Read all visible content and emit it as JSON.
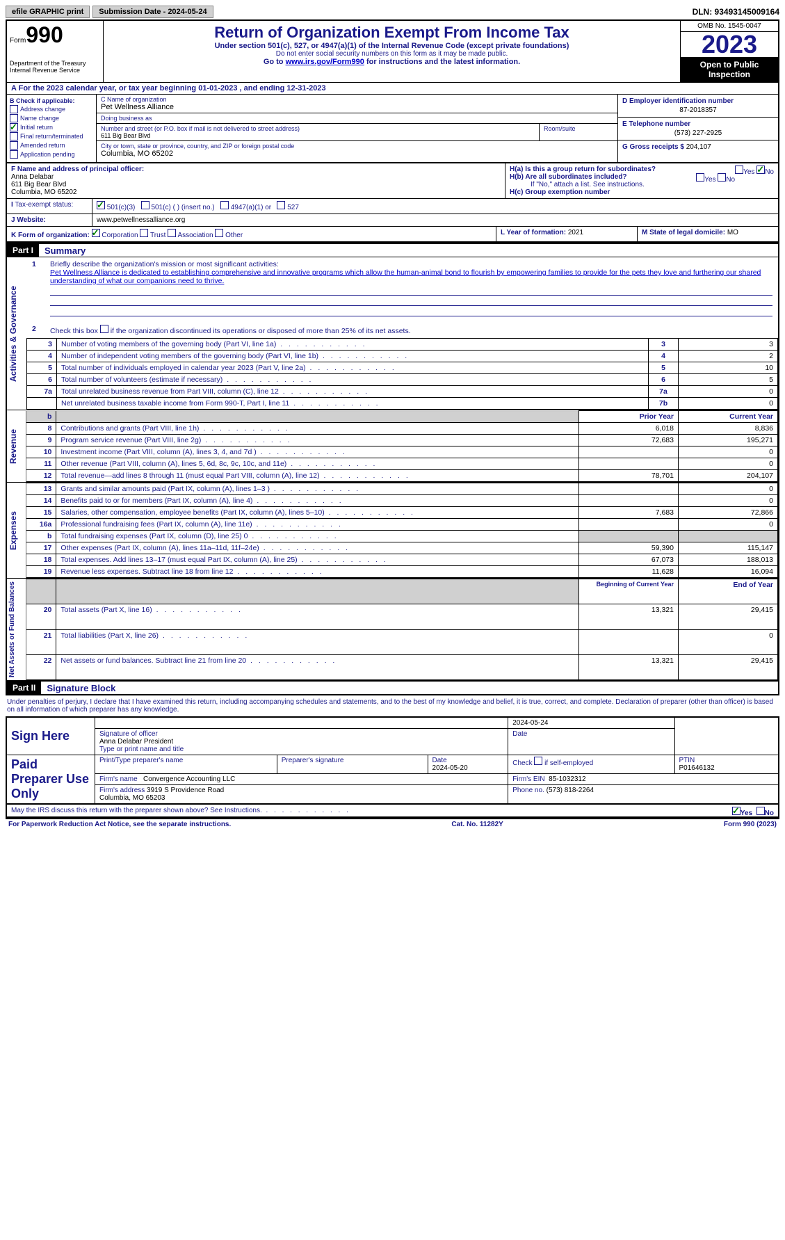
{
  "colors": {
    "primary_text": "#1a1a8a",
    "link": "#0000cc",
    "check": "#008000",
    "header_bg": "#000000",
    "grey_bg": "#d0d0d0"
  },
  "top": {
    "efile": "efile GRAPHIC print",
    "submission": "Submission Date - 2024-05-24",
    "dln": "DLN: 93493145009164"
  },
  "header": {
    "form_word": "Form",
    "form_num": "990",
    "title": "Return of Organization Exempt From Income Tax",
    "sub1": "Under section 501(c), 527, or 4947(a)(1) of the Internal Revenue Code (except private foundations)",
    "sub2": "Do not enter social security numbers on this form as it may be made public.",
    "sub3_pre": "Go to ",
    "sub3_link": "www.irs.gov/Form990",
    "sub3_post": " for instructions and the latest information.",
    "dept": "Department of the Treasury\nInternal Revenue Service",
    "omb": "OMB No. 1545-0047",
    "year": "2023",
    "open": "Open to Public Inspection"
  },
  "cal_year": "For the 2023 calendar year, or tax year beginning 01-01-2023   , and ending 12-31-2023",
  "box_b": {
    "hdr": "B Check if applicable:",
    "items": [
      "Address change",
      "Name change",
      "Initial return",
      "Final return/terminated",
      "Amended return",
      "Application pending"
    ],
    "checked_idx": 2
  },
  "box_c": {
    "name_lbl": "C Name of organization",
    "name": "Pet Wellness Alliance",
    "dba_lbl": "Doing business as",
    "dba": "",
    "addr_lbl": "Number and street (or P.O. box if mail is not delivered to street address)",
    "addr": "611 Big Bear Blvd",
    "room_lbl": "Room/suite",
    "city_lbl": "City or town, state or province, country, and ZIP or foreign postal code",
    "city": "Columbia, MO  65202"
  },
  "box_d": {
    "ein_lbl": "D Employer identification number",
    "ein": "87-2018357",
    "tel_lbl": "E Telephone number",
    "tel": "(573) 227-2925",
    "gross_lbl": "G Gross receipts $",
    "gross": "204,107"
  },
  "box_f": {
    "lbl": "F  Name and address of principal officer:",
    "name": "Anna Delabar",
    "addr1": "611 Big Bear Blvd",
    "addr2": "Columbia, MO  65202"
  },
  "box_h": {
    "a": "H(a)  Is this a group return for subordinates?",
    "b": "H(b)  Are all subordinates included?",
    "b_note": "If \"No,\" attach a list. See instructions.",
    "c": "H(c)  Group exemption number",
    "yes": "Yes",
    "no": "No"
  },
  "box_i": {
    "lbl": "Tax-exempt status:",
    "opts": [
      "501(c)(3)",
      "501(c) (  ) (insert no.)",
      "4947(a)(1) or",
      "527"
    ]
  },
  "box_j": {
    "lbl": "Website:",
    "val": "www.petwellnessalliance.org"
  },
  "box_k": {
    "lbl": "K Form of organization:",
    "opts": [
      "Corporation",
      "Trust",
      "Association",
      "Other"
    ]
  },
  "box_l": {
    "lbl": "L Year of formation:",
    "val": "2021"
  },
  "box_m": {
    "lbl": "M State of legal domicile:",
    "val": "MO"
  },
  "part1": {
    "hdr": "Part I",
    "title": "Summary",
    "mission_lbl": "Briefly describe the organization's mission or most significant activities:",
    "mission": "Pet Wellness Alliance is dedicated to establishing comprehensive and innovative programs which allow the human-animal bond to flourish by empowering families to provide for the pets they love and furthering our shared understanding of what our companions need to thrive.",
    "line2": "Check this box      if the organization discontinued its operations or disposed of more than 25% of its net assets.",
    "sections": {
      "gov": "Activities & Governance",
      "rev": "Revenue",
      "exp": "Expenses",
      "net": "Net Assets or Fund Balances"
    },
    "col_hdrs": {
      "prior": "Prior Year",
      "current": "Current Year",
      "begin": "Beginning of Current Year",
      "end": "End of Year"
    },
    "gov_rows": [
      {
        "n": "3",
        "t": "Number of voting members of the governing body (Part VI, line 1a)",
        "b": "3",
        "v": "3"
      },
      {
        "n": "4",
        "t": "Number of independent voting members of the governing body (Part VI, line 1b)",
        "b": "4",
        "v": "2"
      },
      {
        "n": "5",
        "t": "Total number of individuals employed in calendar year 2023 (Part V, line 2a)",
        "b": "5",
        "v": "10"
      },
      {
        "n": "6",
        "t": "Total number of volunteers (estimate if necessary)",
        "b": "6",
        "v": "5"
      },
      {
        "n": "7a",
        "t": "Total unrelated business revenue from Part VIII, column (C), line 12",
        "b": "7a",
        "v": "0"
      },
      {
        "n": "",
        "t": "Net unrelated business taxable income from Form 990-T, Part I, line 11",
        "b": "7b",
        "v": "0"
      }
    ],
    "rev_rows": [
      {
        "n": "8",
        "t": "Contributions and grants (Part VIII, line 1h)",
        "p": "6,018",
        "c": "8,836"
      },
      {
        "n": "9",
        "t": "Program service revenue (Part VIII, line 2g)",
        "p": "72,683",
        "c": "195,271"
      },
      {
        "n": "10",
        "t": "Investment income (Part VIII, column (A), lines 3, 4, and 7d )",
        "p": "",
        "c": "0"
      },
      {
        "n": "11",
        "t": "Other revenue (Part VIII, column (A), lines 5, 6d, 8c, 9c, 10c, and 11e)",
        "p": "",
        "c": "0"
      },
      {
        "n": "12",
        "t": "Total revenue—add lines 8 through 11 (must equal Part VIII, column (A), line 12)",
        "p": "78,701",
        "c": "204,107"
      }
    ],
    "exp_rows": [
      {
        "n": "13",
        "t": "Grants and similar amounts paid (Part IX, column (A), lines 1–3 )",
        "p": "",
        "c": "0"
      },
      {
        "n": "14",
        "t": "Benefits paid to or for members (Part IX, column (A), line 4)",
        "p": "",
        "c": "0"
      },
      {
        "n": "15",
        "t": "Salaries, other compensation, employee benefits (Part IX, column (A), lines 5–10)",
        "p": "7,683",
        "c": "72,866"
      },
      {
        "n": "16a",
        "t": "Professional fundraising fees (Part IX, column (A), line 11e)",
        "p": "",
        "c": "0"
      },
      {
        "n": "b",
        "t": "Total fundraising expenses (Part IX, column (D), line 25) 0",
        "p": "GREY",
        "c": "GREY"
      },
      {
        "n": "17",
        "t": "Other expenses (Part IX, column (A), lines 11a–11d, 11f–24e)",
        "p": "59,390",
        "c": "115,147"
      },
      {
        "n": "18",
        "t": "Total expenses. Add lines 13–17 (must equal Part IX, column (A), line 25)",
        "p": "67,073",
        "c": "188,013"
      },
      {
        "n": "19",
        "t": "Revenue less expenses. Subtract line 18 from line 12",
        "p": "11,628",
        "c": "16,094"
      }
    ],
    "net_rows": [
      {
        "n": "20",
        "t": "Total assets (Part X, line 16)",
        "p": "13,321",
        "c": "29,415"
      },
      {
        "n": "21",
        "t": "Total liabilities (Part X, line 26)",
        "p": "",
        "c": "0"
      },
      {
        "n": "22",
        "t": "Net assets or fund balances. Subtract line 21 from line 20",
        "p": "13,321",
        "c": "29,415"
      }
    ]
  },
  "part2": {
    "hdr": "Part II",
    "title": "Signature Block",
    "decl": "Under penalties of perjury, I declare that I have examined this return, including accompanying schedules and statements, and to the best of my knowledge and belief, it is true, correct, and complete. Declaration of preparer (other than officer) is based on all information of which preparer has any knowledge."
  },
  "sign": {
    "here": "Sign Here",
    "sig_lbl": "Signature of officer",
    "sig_name": "Anna Delabar  President",
    "type_lbl": "Type or print name and title",
    "date_lbl": "Date",
    "date": "2024-05-24"
  },
  "preparer": {
    "here": "Paid Preparer Use Only",
    "name_lbl": "Print/Type preparer's name",
    "sig_lbl": "Preparer's signature",
    "date_lbl": "Date",
    "date": "2024-05-20",
    "check_lbl": "Check      if self-employed",
    "ptin_lbl": "PTIN",
    "ptin": "P01646132",
    "firm_name_lbl": "Firm's name",
    "firm_name": "Convergence Accounting LLC",
    "firm_ein_lbl": "Firm's EIN",
    "firm_ein": "85-1032312",
    "firm_addr_lbl": "Firm's address",
    "firm_addr": "3919 S Providence Road\nColumbia, MO  65203",
    "phone_lbl": "Phone no.",
    "phone": "(573) 818-2264"
  },
  "irs_discuss": "May the IRS discuss this return with the preparer shown above? See Instructions.",
  "footer": {
    "left": "For Paperwork Reduction Act Notice, see the separate instructions.",
    "center": "Cat. No. 11282Y",
    "right": "Form 990 (2023)"
  }
}
